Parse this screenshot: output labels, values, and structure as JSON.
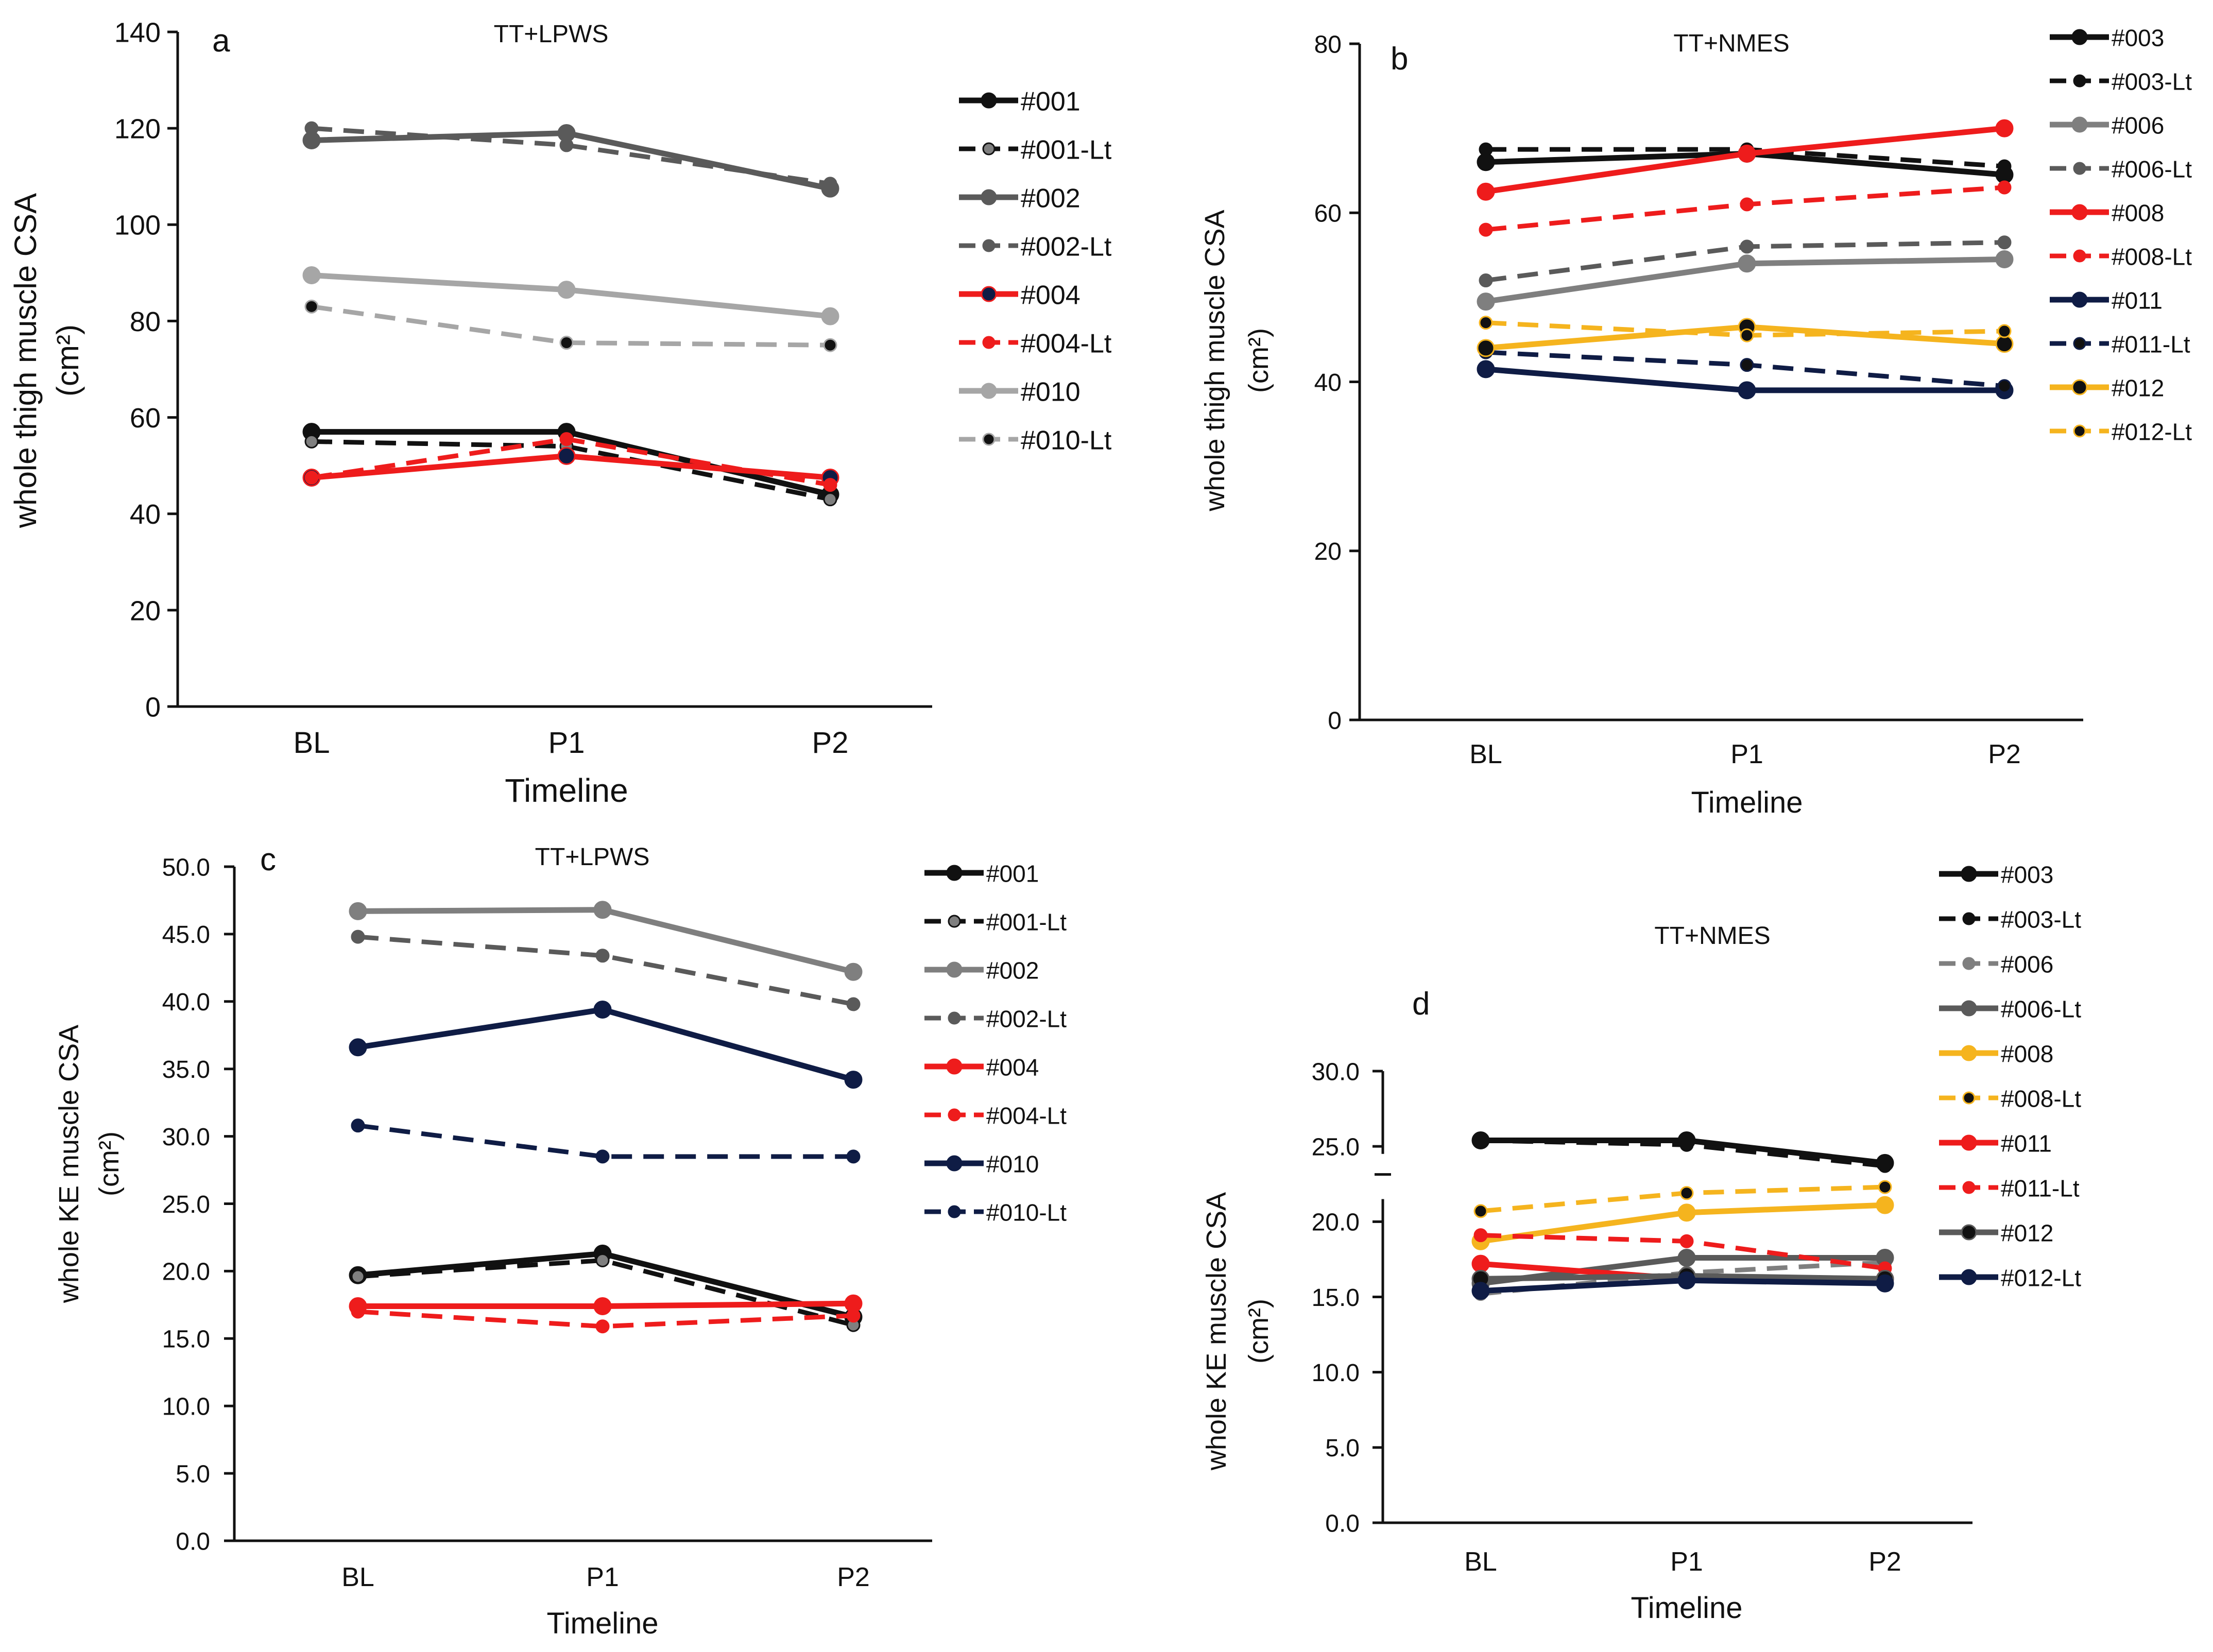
{
  "colors": {
    "black": "#111111",
    "gray_dark": "#5a5a5a",
    "gray_mid": "#7f7f7f",
    "gray_light": "#a6a6a6",
    "red": "#ee1c1c",
    "navy": "#0f1c45",
    "orange": "#f5b41e"
  },
  "chart_data": [
    {
      "panel": "a",
      "type": "line",
      "title": "TT+LPWS",
      "xlabel": "Timeline",
      "ylabel": "whole thigh muscle CSA",
      "yunit": "(cm²)",
      "categories": [
        "BL",
        "P1",
        "P2"
      ],
      "ylim": [
        0,
        140
      ],
      "yticks": [
        "0",
        "20",
        "40",
        "60",
        "80",
        "100",
        "120",
        "140"
      ],
      "tick_values": [
        0,
        20,
        40,
        60,
        80,
        100,
        120,
        140
      ],
      "series": [
        {
          "name": "#001",
          "values": [
            57,
            57,
            44
          ],
          "color": "black",
          "dashed": false,
          "marker": "black"
        },
        {
          "name": "#001-Lt",
          "values": [
            55,
            54,
            43
          ],
          "color": "black",
          "dashed": true,
          "marker": "gray_mid"
        },
        {
          "name": "#002",
          "values": [
            117.5,
            119,
            107.5
          ],
          "color": "gray_dark",
          "dashed": false,
          "marker": "gray_dark"
        },
        {
          "name": "#002-Lt",
          "values": [
            120,
            116.5,
            108.5
          ],
          "color": "gray_dark",
          "dashed": true,
          "marker": "gray_dark"
        },
        {
          "name": "#004",
          "values": [
            47.5,
            52,
            47.5
          ],
          "color": "red",
          "dashed": false,
          "marker": "navy"
        },
        {
          "name": "#004-Lt",
          "values": [
            47.5,
            55.5,
            46
          ],
          "color": "red",
          "dashed": true,
          "marker": "red"
        },
        {
          "name": "#010",
          "values": [
            89.5,
            86.5,
            81
          ],
          "color": "gray_light",
          "dashed": false,
          "marker": "gray_light"
        },
        {
          "name": "#010-Lt",
          "values": [
            83,
            75.5,
            75
          ],
          "color": "gray_light",
          "dashed": true,
          "marker": "black"
        }
      ]
    },
    {
      "panel": "b",
      "type": "line",
      "title": "TT+NMES",
      "xlabel": "Timeline",
      "ylabel": "whole thigh muscle CSA",
      "yunit": "(cm²)",
      "categories": [
        "BL",
        "P1",
        "P2"
      ],
      "ylim": [
        0,
        80
      ],
      "yticks": [
        "0",
        "20",
        "40",
        "60",
        "80"
      ],
      "tick_values": [
        0,
        20,
        40,
        60,
        80
      ],
      "series": [
        {
          "name": "#003",
          "values": [
            66,
            67,
            64.5
          ],
          "color": "black",
          "dashed": false,
          "marker": "black"
        },
        {
          "name": "#003-Lt",
          "values": [
            67.5,
            67.5,
            65.5
          ],
          "color": "black",
          "dashed": true,
          "marker": "black"
        },
        {
          "name": "#006",
          "values": [
            49.5,
            54,
            54.5
          ],
          "color": "gray_mid",
          "dashed": false,
          "marker": "gray_mid"
        },
        {
          "name": "#006-Lt",
          "values": [
            52,
            56,
            56.5
          ],
          "color": "gray_dark",
          "dashed": true,
          "marker": "gray_dark"
        },
        {
          "name": "#008",
          "values": [
            62.5,
            67,
            70
          ],
          "color": "red",
          "dashed": false,
          "marker": "red"
        },
        {
          "name": "#008-Lt",
          "values": [
            58,
            61,
            63
          ],
          "color": "red",
          "dashed": true,
          "marker": "red"
        },
        {
          "name": "#011",
          "values": [
            41.5,
            39,
            39
          ],
          "color": "navy",
          "dashed": false,
          "marker": "navy"
        },
        {
          "name": "#011-Lt",
          "values": [
            43.5,
            42,
            39.5
          ],
          "color": "navy",
          "dashed": true,
          "marker": "black"
        },
        {
          "name": "#012",
          "values": [
            44,
            46.5,
            44.5
          ],
          "color": "orange",
          "dashed": false,
          "marker": "black"
        },
        {
          "name": "#012-Lt",
          "values": [
            47,
            45.5,
            46
          ],
          "color": "orange",
          "dashed": true,
          "marker": "black"
        }
      ]
    },
    {
      "panel": "c",
      "type": "line",
      "title": "TT+LPWS",
      "xlabel": "Timeline",
      "ylabel": "whole KE muscle CSA",
      "yunit": "(cm²)",
      "categories": [
        "BL",
        "P1",
        "P2"
      ],
      "ylim": [
        0,
        50
      ],
      "yticks": [
        "0.0",
        "5.0",
        "10.0",
        "15.0",
        "20.0",
        "25.0",
        "30.0",
        "35.0",
        "40.0",
        "45.0",
        "50.0"
      ],
      "tick_values": [
        0,
        5,
        10,
        15,
        20,
        25,
        30,
        35,
        40,
        45,
        50
      ],
      "series": [
        {
          "name": "#001",
          "values": [
            19.7,
            21.3,
            16.6
          ],
          "color": "black",
          "dashed": false,
          "marker": "black"
        },
        {
          "name": "#001-Lt",
          "values": [
            19.6,
            20.8,
            16
          ],
          "color": "black",
          "dashed": true,
          "marker": "gray_mid"
        },
        {
          "name": "#002",
          "values": [
            46.7,
            46.8,
            42.2
          ],
          "color": "gray_mid",
          "dashed": false,
          "marker": "gray_mid"
        },
        {
          "name": "#002-Lt",
          "values": [
            44.8,
            43.4,
            39.8
          ],
          "color": "gray_dark",
          "dashed": true,
          "marker": "gray_dark"
        },
        {
          "name": "#004",
          "values": [
            17.4,
            17.4,
            17.6
          ],
          "color": "red",
          "dashed": false,
          "marker": "red"
        },
        {
          "name": "#004-Lt",
          "values": [
            17,
            15.9,
            16.7
          ],
          "color": "red",
          "dashed": true,
          "marker": "red"
        },
        {
          "name": "#010",
          "values": [
            36.6,
            39.4,
            34.2
          ],
          "color": "navy",
          "dashed": false,
          "marker": "navy"
        },
        {
          "name": "#010-Lt",
          "values": [
            30.8,
            28.5,
            28.5
          ],
          "color": "navy",
          "dashed": true,
          "marker": "navy"
        }
      ]
    },
    {
      "panel": "d",
      "type": "line",
      "title": "TT+NMES",
      "xlabel": "Timeline",
      "ylabel": "whole KE muscle CSA",
      "yunit": "(cm²)",
      "categories": [
        "BL",
        "P1",
        "P2"
      ],
      "ylim": [
        0,
        30
      ],
      "axis_break": [
        21.5,
        24.5
      ],
      "yticks": [
        "0.0",
        "5.0",
        "10.0",
        "15.0",
        "20.0",
        "25.0",
        "30.0"
      ],
      "tick_values": [
        0,
        5,
        10,
        15,
        20,
        25,
        30
      ],
      "series": [
        {
          "name": "#003",
          "values": [
            25.4,
            25.4,
            23.9
          ],
          "color": "black",
          "dashed": false,
          "marker": "black"
        },
        {
          "name": "#003-Lt",
          "values": [
            25.4,
            25.1,
            23.7
          ],
          "color": "black",
          "dashed": true,
          "marker": "black"
        },
        {
          "name": "#006",
          "values": [
            15.2,
            16.6,
            17.3
          ],
          "color": "gray_mid",
          "dashed": true,
          "marker": "gray_mid"
        },
        {
          "name": "#006-Lt",
          "values": [
            15.9,
            17.6,
            17.6
          ],
          "color": "gray_dark",
          "dashed": false,
          "marker": "gray_dark"
        },
        {
          "name": "#008",
          "values": [
            18.7,
            20.6,
            21.1
          ],
          "color": "orange",
          "dashed": false,
          "marker": "orange"
        },
        {
          "name": "#008-Lt",
          "values": [
            20.7,
            21.9,
            22.3
          ],
          "color": "orange",
          "dashed": true,
          "marker": "black"
        },
        {
          "name": "#011",
          "values": [
            17.2,
            16.2,
            16.2
          ],
          "color": "red",
          "dashed": false,
          "marker": "red"
        },
        {
          "name": "#011-Lt",
          "values": [
            19.1,
            18.7,
            16.9
          ],
          "color": "red",
          "dashed": true,
          "marker": "red"
        },
        {
          "name": "#012",
          "values": [
            16.2,
            16.4,
            16.2
          ],
          "color": "gray_dark",
          "dashed": false,
          "marker": "black"
        },
        {
          "name": "#012-Lt",
          "values": [
            15.4,
            16.1,
            15.9
          ],
          "color": "navy",
          "dashed": false,
          "marker": "navy"
        }
      ]
    }
  ]
}
